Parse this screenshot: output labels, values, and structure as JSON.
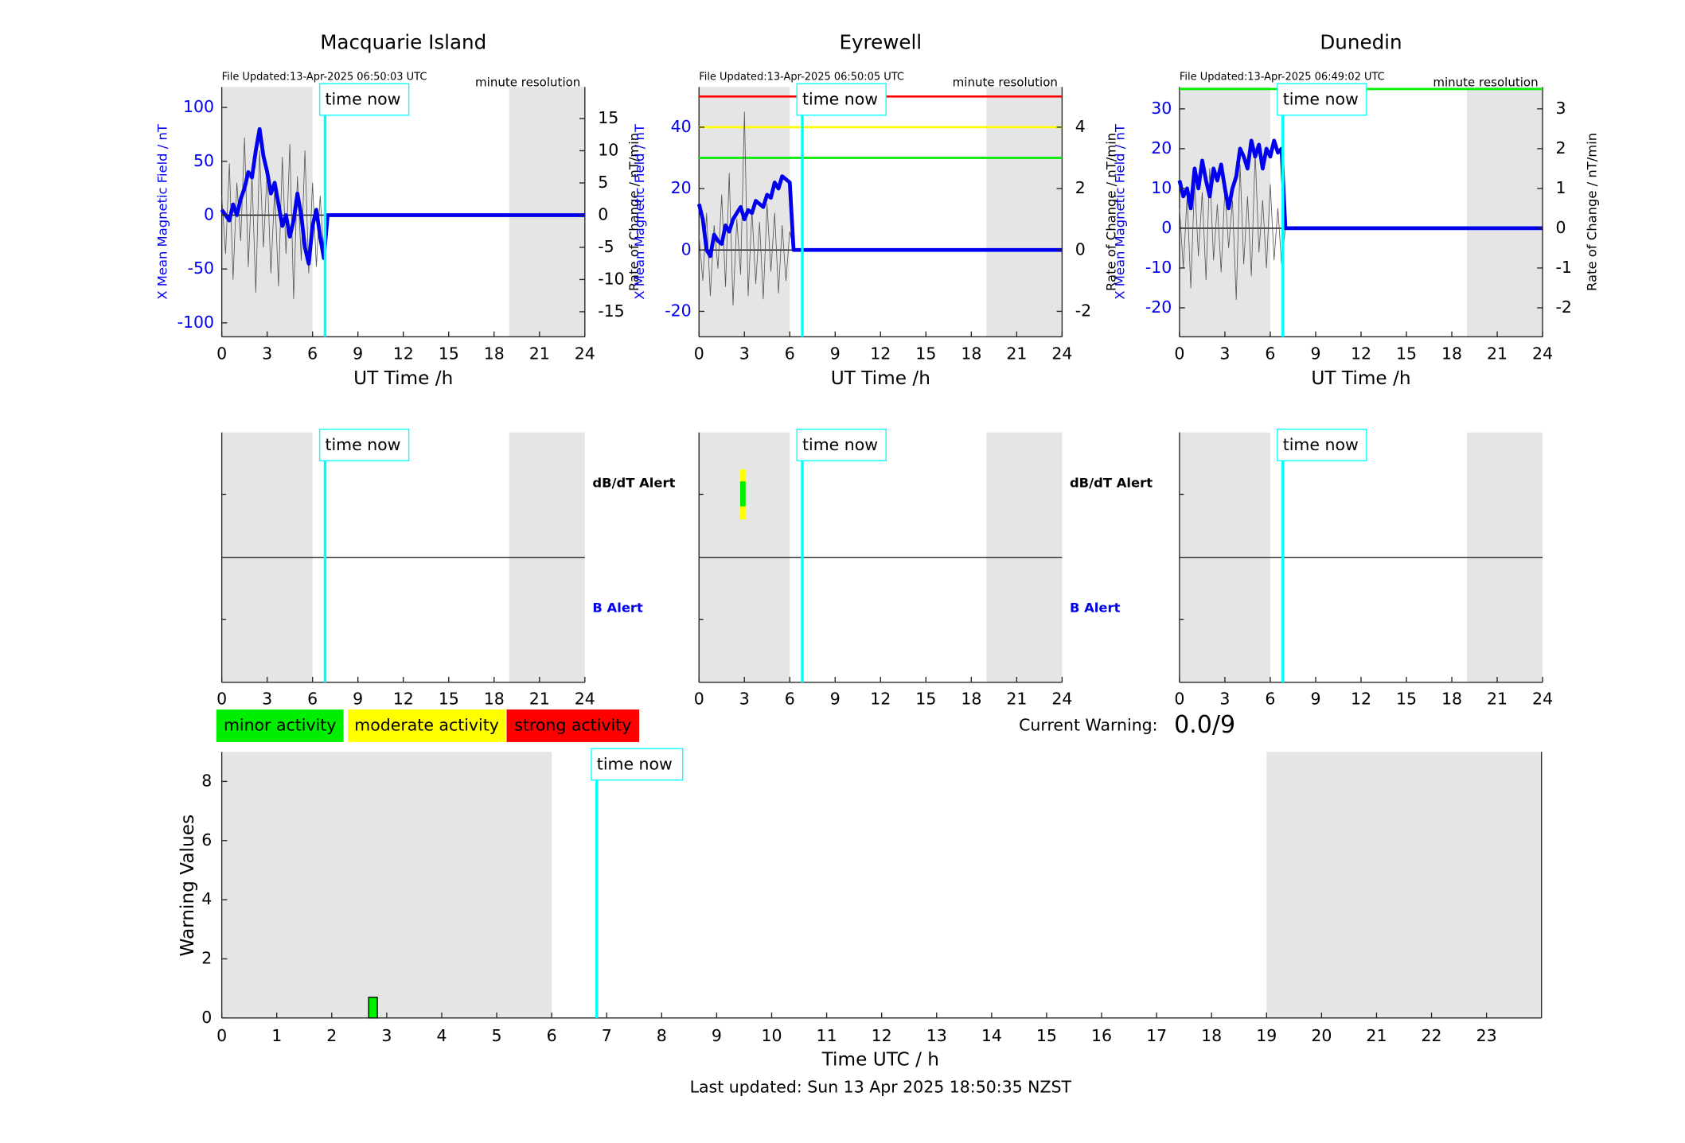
{
  "chart_data": [
    {
      "type": "line",
      "title": "Macquarie Island",
      "file_updated": "File Updated:13-Apr-2025 06:50:03 UTC",
      "resolution": "minute resolution",
      "time_now_label": "time now",
      "time_now": 6.83,
      "xlabel": "UT Time /h",
      "ylabel": "X Mean Magnetic Field / nT",
      "y2label": "Rate of Change / nT/min",
      "xlim": [
        0,
        24
      ],
      "xticks": [
        0,
        3,
        6,
        9,
        12,
        15,
        18,
        21,
        24
      ],
      "ylim": [
        -113,
        119
      ],
      "yticks": [
        -100,
        -50,
        0,
        50,
        100
      ],
      "y2lim": [
        -18.9,
        19.9
      ],
      "y2ticks": [
        -15,
        -10,
        -5,
        0,
        5,
        10,
        15
      ],
      "shaded": [
        [
          0,
          6
        ],
        [
          19,
          24
        ]
      ],
      "thresholds": [],
      "x": [
        0,
        0.25,
        0.5,
        0.75,
        1,
        1.25,
        1.5,
        1.75,
        2,
        2.25,
        2.5,
        2.75,
        3,
        3.25,
        3.5,
        3.75,
        4,
        4.25,
        4.5,
        4.75,
        5,
        5.25,
        5.5,
        5.75,
        6,
        6.25,
        6.5,
        6.75,
        7,
        24
      ],
      "series": [
        {
          "color": "#555555",
          "axis": "y2",
          "values": [
            3,
            -6,
            8,
            -10,
            5,
            -4,
            12,
            -8,
            6,
            -12,
            10,
            -5,
            7,
            -9,
            4,
            -11,
            9,
            -6,
            11,
            -13,
            6,
            -7,
            10,
            -9,
            5,
            -8,
            3,
            -6,
            0,
            0
          ]
        },
        {
          "color": "#0000ee",
          "values": [
            5,
            0,
            -5,
            10,
            0,
            15,
            25,
            40,
            35,
            60,
            80,
            55,
            40,
            20,
            30,
            10,
            -10,
            0,
            -20,
            -5,
            20,
            0,
            -30,
            -45,
            -10,
            5,
            -20,
            -40,
            0,
            0
          ]
        }
      ]
    },
    {
      "type": "line",
      "title": "Eyrewell",
      "file_updated": "File Updated:13-Apr-2025 06:50:05 UTC",
      "resolution": "minute resolution",
      "time_now_label": "time now",
      "time_now": 6.83,
      "xlabel": "UT Time /h",
      "ylabel": "X Mean Magnetic Field / nT",
      "y2label": "Rate of Change / nT/min",
      "xlim": [
        0,
        24
      ],
      "xticks": [
        0,
        3,
        6,
        9,
        12,
        15,
        18,
        21,
        24
      ],
      "ylim": [
        -28.3,
        53.1
      ],
      "yticks": [
        -20,
        0,
        20,
        40
      ],
      "y2lim": [
        -2.83,
        5.31
      ],
      "y2ticks": [
        -2,
        0,
        2,
        4
      ],
      "shaded": [
        [
          0,
          6
        ],
        [
          19,
          24
        ]
      ],
      "thresholds": [
        {
          "value": 5,
          "color": "#ff0000"
        },
        {
          "value": 4,
          "color": "#ffff00"
        },
        {
          "value": 3,
          "color": "#00ee00"
        }
      ],
      "x": [
        0,
        0.25,
        0.5,
        0.75,
        1,
        1.25,
        1.5,
        1.75,
        2,
        2.25,
        2.5,
        2.75,
        3,
        3.25,
        3.5,
        3.75,
        4,
        4.25,
        4.5,
        4.75,
        5,
        5.25,
        5.5,
        5.75,
        6,
        6.25,
        24
      ],
      "series": [
        {
          "color": "#555555",
          "axis": "y2",
          "values": [
            0.5,
            -1,
            1.2,
            -1.5,
            0.8,
            -0.6,
            1.8,
            -1.2,
            2.5,
            -1.8,
            1,
            -0.8,
            4.5,
            -1.5,
            1.3,
            -1.1,
            0.9,
            -1.6,
            1.5,
            -0.7,
            1.2,
            -1.4,
            0.8,
            -1,
            0.6,
            0,
            0
          ]
        },
        {
          "color": "#0000ee",
          "values": [
            15,
            10,
            0,
            -2,
            5,
            3,
            2,
            8,
            6,
            10,
            12,
            14,
            10,
            13,
            12,
            16,
            15,
            14,
            18,
            17,
            22,
            20,
            24,
            23,
            22,
            0,
            0
          ]
        }
      ]
    },
    {
      "type": "line",
      "title": "Dunedin",
      "file_updated": "File Updated:13-Apr-2025 06:49:02 UTC",
      "resolution": "minute resolution",
      "time_now_label": "time now",
      "time_now": 6.83,
      "xlabel": "UT Time /h",
      "ylabel": "X Mean Magnetic Field / nT",
      "y2label": "Rate of Change / nT/min",
      "xlim": [
        0,
        24
      ],
      "xticks": [
        0,
        3,
        6,
        9,
        12,
        15,
        18,
        21,
        24
      ],
      "ylim": [
        -27.3,
        35.5
      ],
      "yticks": [
        -20,
        -10,
        0,
        10,
        20,
        30
      ],
      "y2lim": [
        -2.73,
        3.55
      ],
      "y2ticks": [
        -2,
        -1,
        0,
        1,
        2,
        3
      ],
      "shaded": [
        [
          0,
          6
        ],
        [
          19,
          24
        ]
      ],
      "thresholds": [
        {
          "value": 3.5,
          "color": "#00ee00"
        }
      ],
      "x": [
        0,
        0.25,
        0.5,
        0.75,
        1,
        1.25,
        1.5,
        1.75,
        2,
        2.25,
        2.5,
        2.75,
        3,
        3.25,
        3.5,
        3.75,
        4,
        4.25,
        4.5,
        4.75,
        5,
        5.25,
        5.5,
        5.75,
        6,
        6.25,
        6.5,
        6.75,
        7,
        24
      ],
      "series": [
        {
          "color": "#555555",
          "axis": "y2",
          "values": [
            0.5,
            -1,
            0.8,
            -1.5,
            1.2,
            -0.7,
            0.9,
            -1.3,
            1.5,
            -0.8,
            0.6,
            -1.1,
            1,
            -0.5,
            0.7,
            -1.8,
            1.6,
            -0.9,
            0.8,
            -1.2,
            1.9,
            -0.6,
            0.7,
            -1,
            1.1,
            -0.8,
            0.5,
            -0.9,
            0,
            0
          ]
        },
        {
          "color": "#0000ee",
          "values": [
            12,
            8,
            10,
            5,
            15,
            10,
            17,
            12,
            8,
            15,
            12,
            16,
            10,
            5,
            10,
            13,
            20,
            18,
            15,
            22,
            18,
            21,
            15,
            20,
            18,
            22,
            19,
            20,
            0,
            0
          ]
        }
      ]
    },
    {
      "type": "alert",
      "time_now_label": "time now",
      "time_now": 6.83,
      "xlim": [
        0,
        24
      ],
      "xticks": [
        0,
        3,
        6,
        9,
        12,
        15,
        18,
        21,
        24
      ],
      "shaded": [
        [
          0,
          6
        ],
        [
          19,
          24
        ]
      ],
      "labels": [
        "dB/dT Alert",
        "B Alert"
      ],
      "alert_marks": []
    },
    {
      "type": "alert",
      "time_now_label": "time now",
      "time_now": 6.83,
      "xlim": [
        0,
        24
      ],
      "xticks": [
        0,
        3,
        6,
        9,
        12,
        15,
        18,
        21,
        24
      ],
      "shaded": [
        [
          0,
          6
        ],
        [
          19,
          24
        ]
      ],
      "labels": [
        "dB/dT Alert",
        "B Alert"
      ],
      "alert_marks": [
        {
          "x": 2.9,
          "color": "#ffff00"
        },
        {
          "x": 2.9,
          "color": "#00ee00"
        }
      ]
    },
    {
      "type": "alert",
      "time_now_label": "time now",
      "time_now": 6.83,
      "xlim": [
        0,
        24
      ],
      "xticks": [
        0,
        3,
        6,
        9,
        12,
        15,
        18,
        21,
        24
      ],
      "shaded": [
        [
          0,
          6
        ],
        [
          19,
          24
        ]
      ],
      "labels": [],
      "alert_marks": []
    },
    {
      "type": "bar",
      "time_now_label": "time now",
      "time_now": 6.82,
      "xlabel": "Time UTC / h",
      "ylabel": "Warning Values",
      "xlim": [
        0,
        24
      ],
      "xticks": [
        0,
        1,
        2,
        3,
        4,
        5,
        6,
        7,
        8,
        9,
        10,
        11,
        12,
        13,
        14,
        15,
        16,
        17,
        18,
        19,
        20,
        21,
        22,
        23
      ],
      "ylim": [
        0,
        9
      ],
      "yticks": [
        0,
        2,
        4,
        6,
        8
      ],
      "shaded": [
        [
          0,
          6
        ],
        [
          19,
          24
        ]
      ],
      "x": [
        2.75
      ],
      "values": [
        0.7
      ],
      "color": "#00ee00",
      "legend": [
        {
          "label": "minor activity",
          "color": "#00ee00"
        },
        {
          "label": "moderate activity",
          "color": "#ffff00"
        },
        {
          "label": "strong activity",
          "color": "#ff0000"
        }
      ],
      "current_warning_label": "Current Warning:",
      "current_warning": "0.0/9",
      "footer": "Last updated: Sun 13 Apr 2025 18:50:35 NZST"
    }
  ]
}
